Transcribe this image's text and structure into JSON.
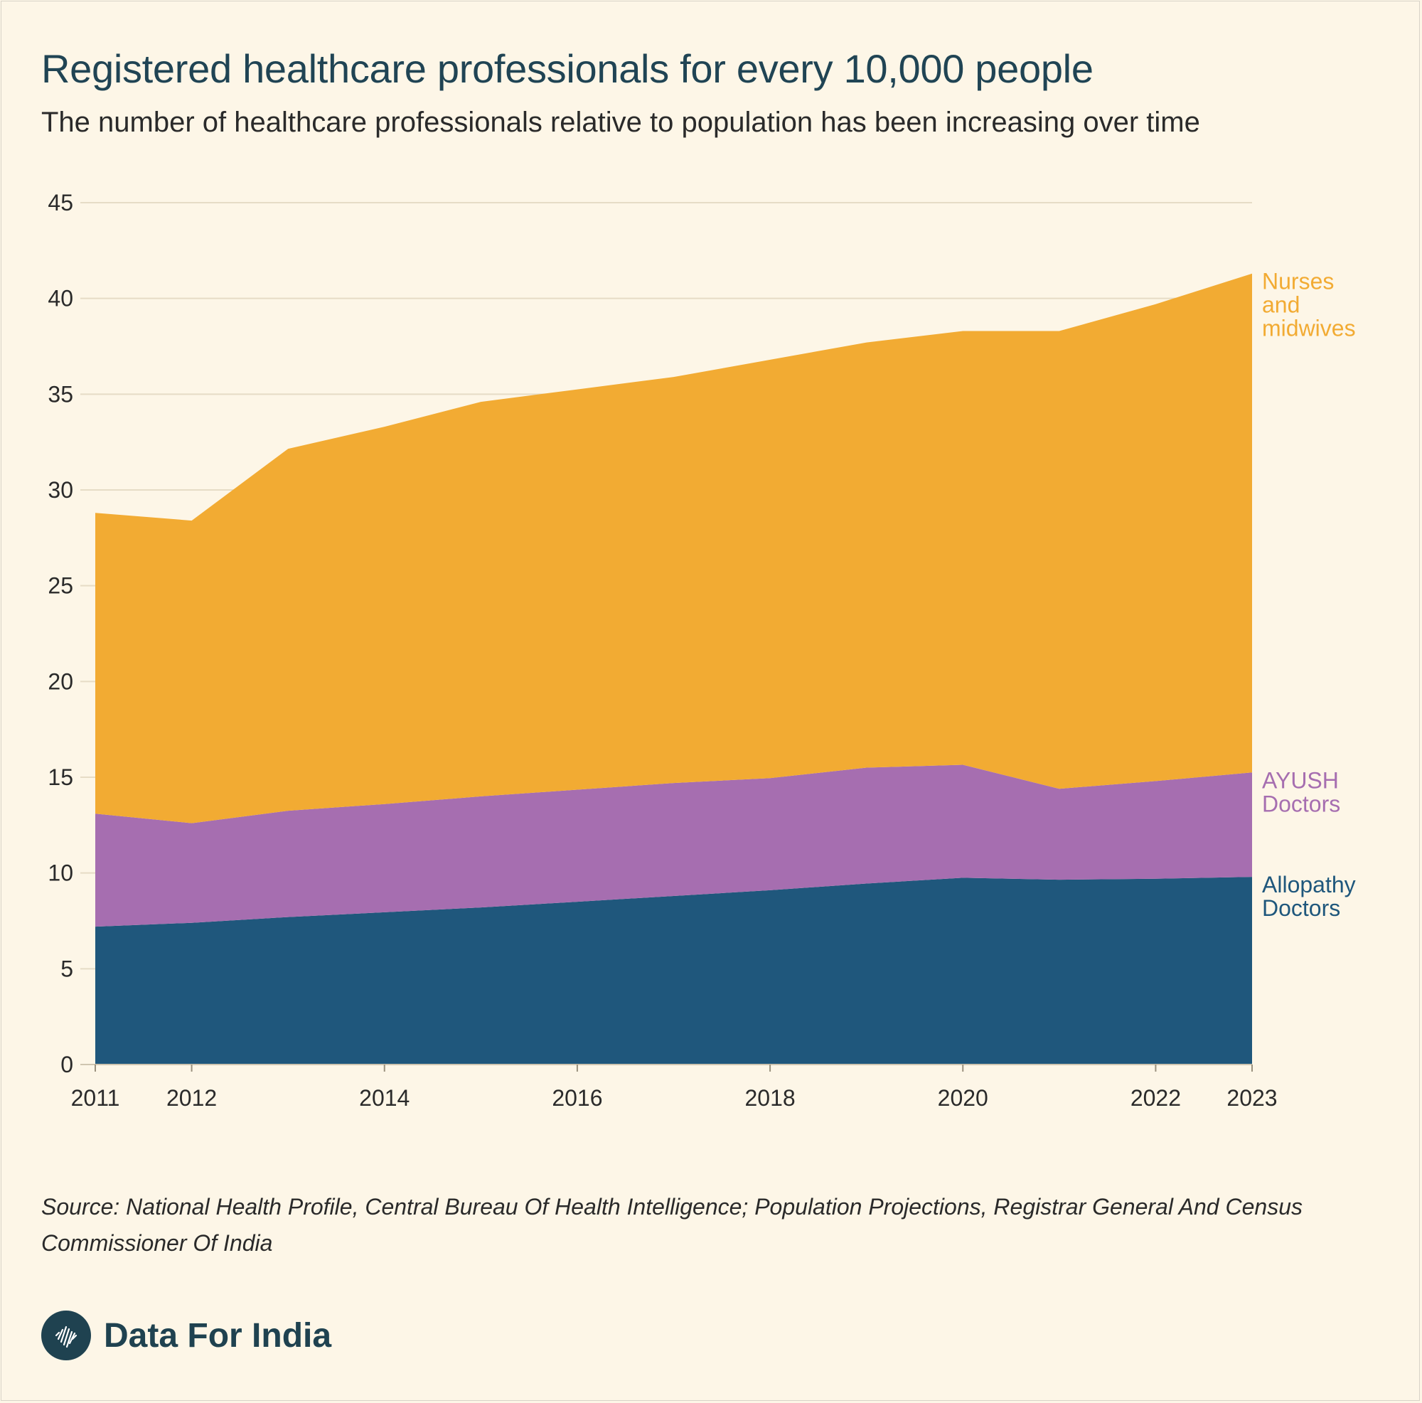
{
  "header": {
    "title": "Registered healthcare professionals for every 10,000 people",
    "subtitle": "The number of healthcare professionals relative to population has been increasing over time"
  },
  "chart_data": {
    "type": "area",
    "stacked": true,
    "x": [
      2011,
      2012,
      2013,
      2014,
      2015,
      2016,
      2017,
      2018,
      2019,
      2020,
      2021,
      2022,
      2023
    ],
    "x_tick_labels": [
      "2011",
      "2012",
      "2014",
      "2016",
      "2018",
      "2020",
      "2022",
      "2023"
    ],
    "y_ticks": [
      0,
      5,
      10,
      15,
      20,
      25,
      30,
      35,
      40,
      45
    ],
    "ylim": [
      0,
      45
    ],
    "xlim": [
      2011,
      2023
    ],
    "grid": "horizontal",
    "legend": "direct labels at right end",
    "series": [
      {
        "name": "Allopathy Doctors",
        "color": "#1f577c",
        "values": [
          7.2,
          7.4,
          7.7,
          7.95,
          8.2,
          8.5,
          8.8,
          9.1,
          9.45,
          9.75,
          9.65,
          9.7,
          9.8
        ]
      },
      {
        "name": "AYUSH Doctors",
        "color": "#a66eb0",
        "values": [
          5.9,
          5.2,
          5.55,
          5.65,
          5.8,
          5.85,
          5.9,
          5.85,
          6.05,
          5.9,
          4.75,
          5.1,
          5.45
        ]
      },
      {
        "name": "Nurses and midwives",
        "color": "#f2ab33",
        "values": [
          15.7,
          15.8,
          18.9,
          19.7,
          20.6,
          20.9,
          21.2,
          21.85,
          22.2,
          22.65,
          23.9,
          24.9,
          26.05
        ]
      }
    ],
    "series_labels": [
      {
        "lines": [
          "Nurses",
          "and",
          "midwives"
        ],
        "color": "#f2ab33"
      },
      {
        "lines": [
          "AYUSH",
          "Doctors"
        ],
        "color": "#a66eb0"
      },
      {
        "lines": [
          "Allopathy",
          "Doctors"
        ],
        "color": "#1f577c"
      }
    ]
  },
  "footer": {
    "source": "Source: National Health Profile, Central Bureau Of Health Intelligence; Population Projections, Registrar General And Census Commissioner Of India",
    "brand": "Data For India",
    "logo_icon": "india-map-logo-icon"
  }
}
